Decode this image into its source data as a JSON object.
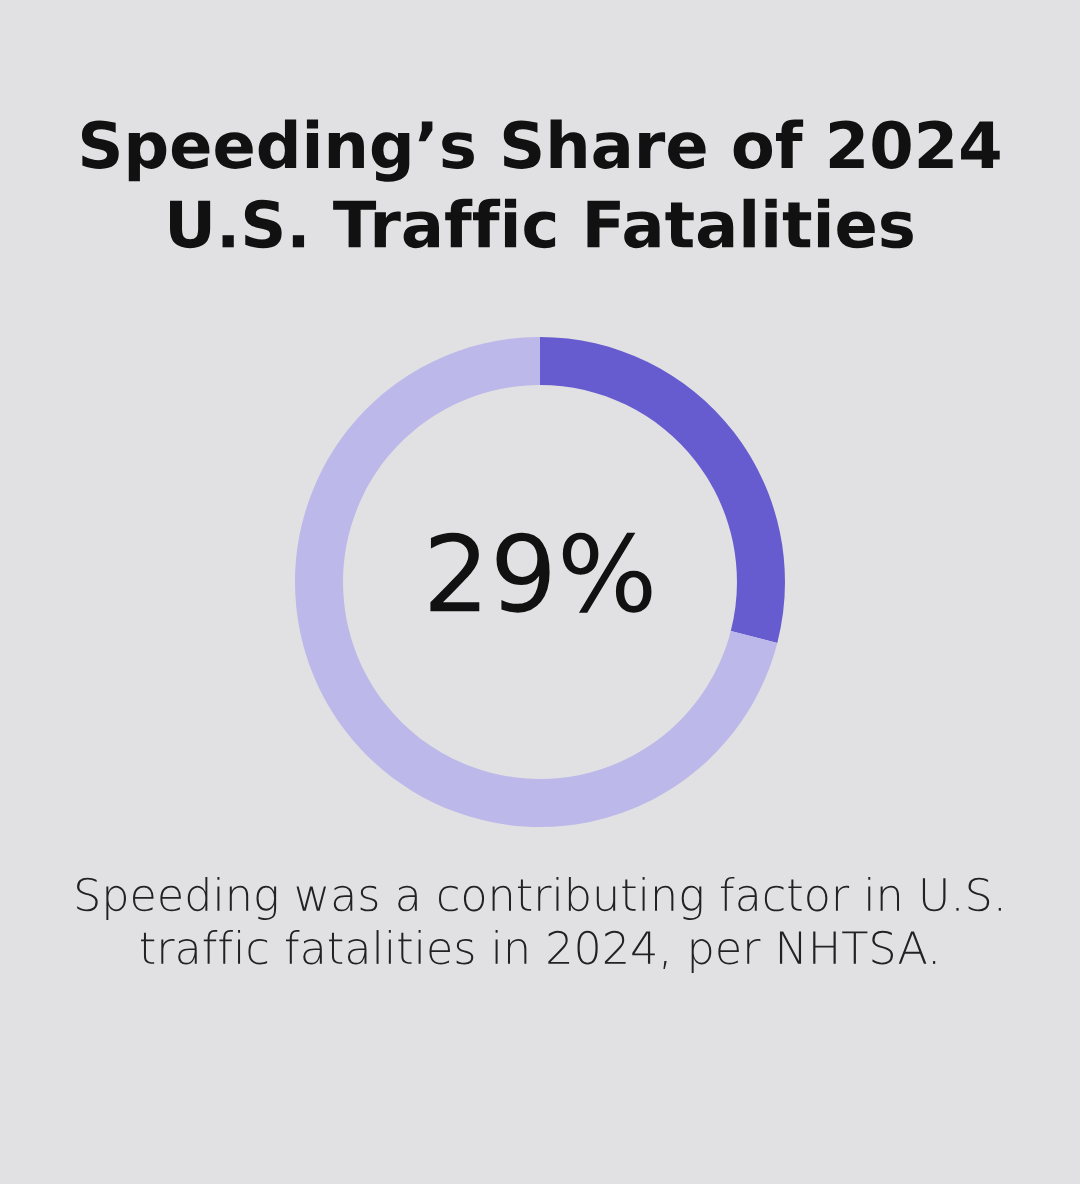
{
  "chart_data": {
    "type": "donut",
    "title": "Speeding’s Share of 2024\nU.S. Traffic Fatalities",
    "categories": [
      null,
      null
    ],
    "values": [
      29,
      71
    ],
    "colors": [
      "#665ccf",
      "#bcb8ea"
    ],
    "annotations": [
      "29%",
      "Speeding was a contributing factor in U.S.\ntraffic fatalities in 2024, per NHTSA."
    ],
    "legend": false
  }
}
